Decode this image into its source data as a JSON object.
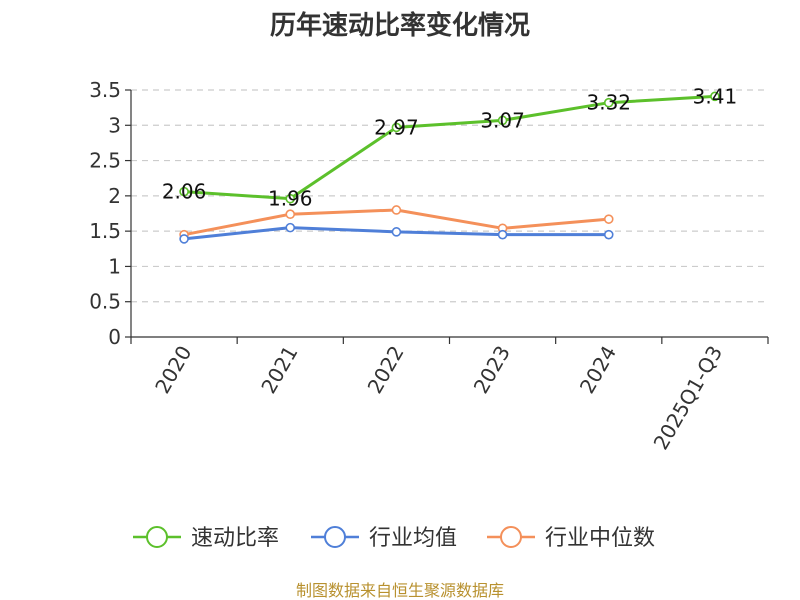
{
  "chart_data": {
    "type": "line",
    "title": "历年速动比率变化情况",
    "categories": [
      "2020",
      "2021",
      "2022",
      "2023",
      "2024",
      "2025Q1-Q3"
    ],
    "ylim": [
      0,
      3.5
    ],
    "yticks": [
      "0",
      "0.5",
      "1",
      "1.5",
      "2",
      "2.5",
      "3",
      "3.5"
    ],
    "grid": true,
    "legend_position": "bottom",
    "series": [
      {
        "name": "速动比率",
        "color": "#5cc02b",
        "values": [
          2.06,
          1.96,
          2.97,
          3.07,
          3.32,
          3.41
        ],
        "labels": [
          "2.06",
          "1.96",
          "2.97",
          "3.07",
          "3.32",
          "3.41"
        ]
      },
      {
        "name": "行业均值",
        "color": "#4f7fd8",
        "values": [
          1.39,
          1.55,
          1.49,
          1.45,
          1.45,
          null
        ]
      },
      {
        "name": "行业中位数",
        "color": "#f4905a",
        "values": [
          1.45,
          1.74,
          1.8,
          1.54,
          1.67,
          null
        ]
      }
    ],
    "source": "制图数据来自恒生聚源数据库"
  }
}
